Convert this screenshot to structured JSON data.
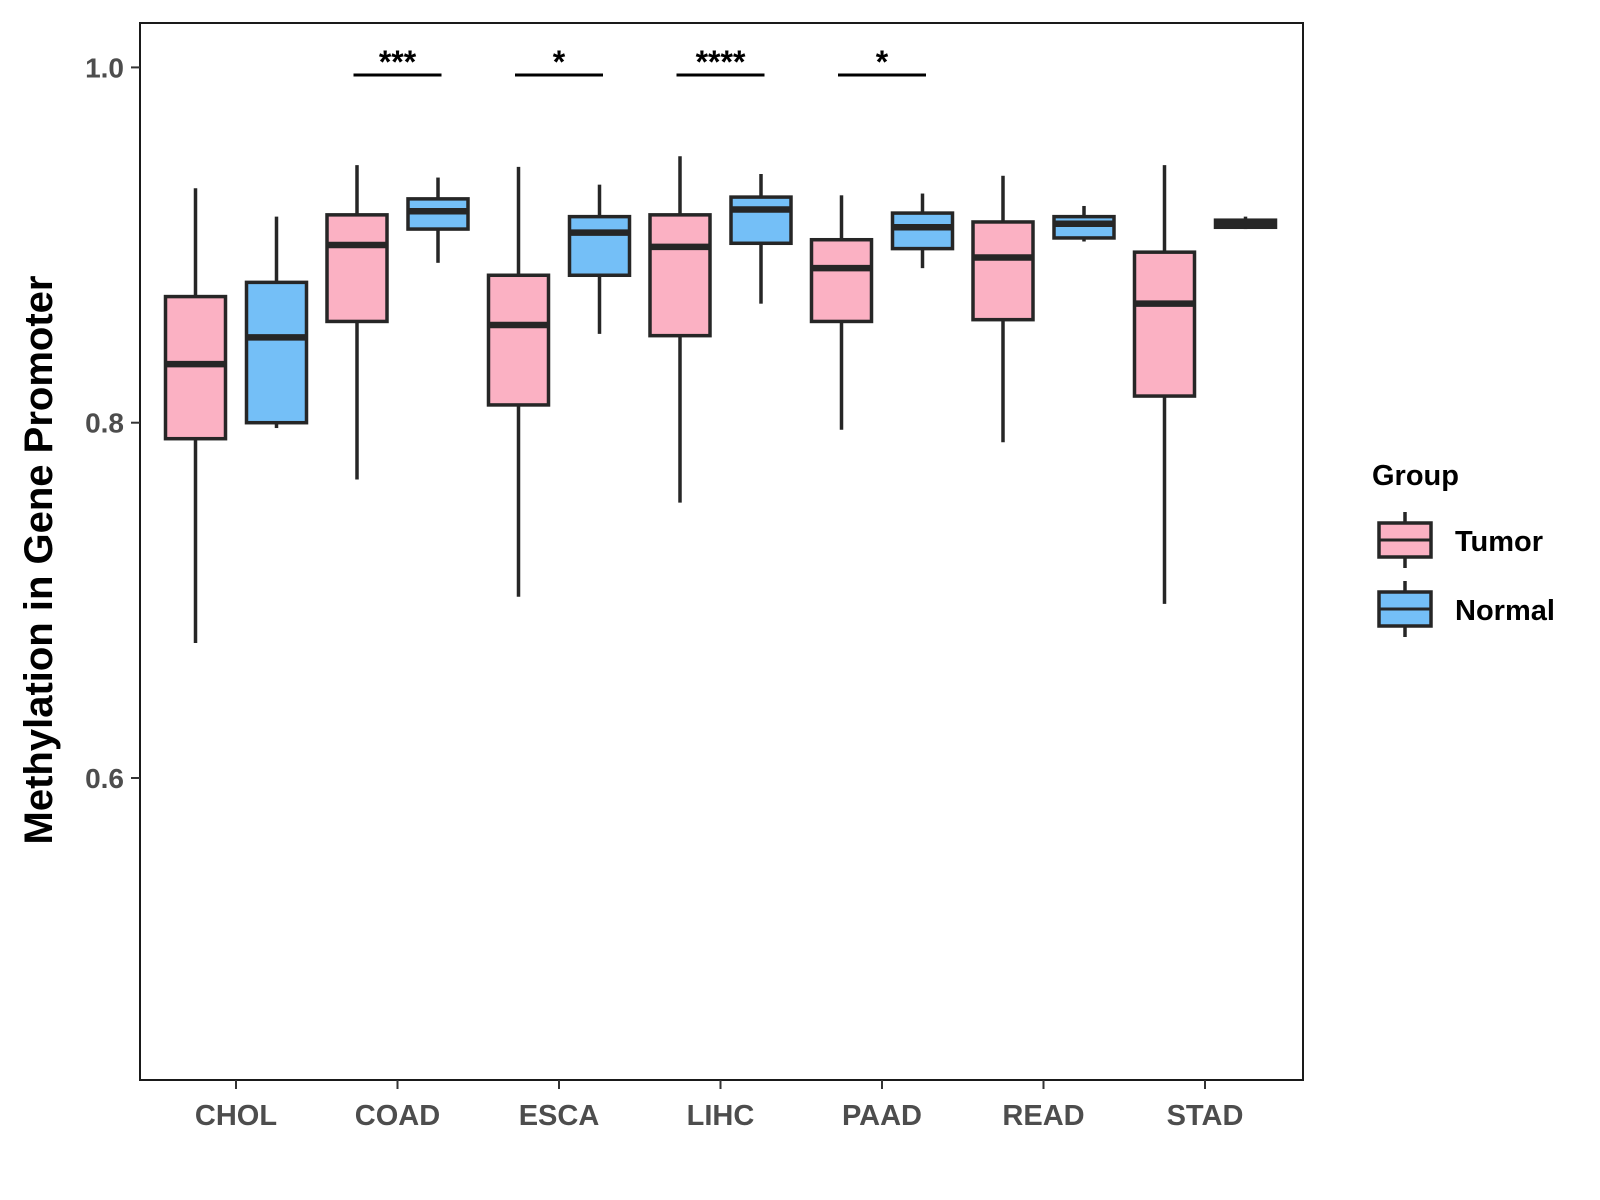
{
  "chart_data": {
    "type": "boxplot",
    "title": "",
    "xlabel": "",
    "ylabel": "Methylation in Gene Promoter",
    "ylim": [
      0.43,
      1.025
    ],
    "yticks": [
      0.6,
      0.8,
      1.0
    ],
    "ytick_labels": [
      "0.6",
      "0.8",
      "1.0"
    ],
    "grid": false,
    "legend_position": "right",
    "categories": [
      "CHOL",
      "COAD",
      "ESCA",
      "LIHC",
      "PAAD",
      "READ",
      "STAD"
    ],
    "legend": {
      "title": "Group",
      "items": [
        {
          "label": "Tumor",
          "color": "#FBB1C3"
        },
        {
          "label": "Normal",
          "color": "#74BFF7"
        }
      ]
    },
    "series": [
      {
        "name": "Tumor",
        "color": "#FBB1C3",
        "boxes": [
          {
            "category": "CHOL",
            "min": 0.676,
            "q1": 0.791,
            "median": 0.833,
            "q3": 0.871,
            "max": 0.932
          },
          {
            "category": "COAD",
            "min": 0.768,
            "q1": 0.857,
            "median": 0.9,
            "q3": 0.917,
            "max": 0.945
          },
          {
            "category": "ESCA",
            "min": 0.702,
            "q1": 0.81,
            "median": 0.855,
            "q3": 0.883,
            "max": 0.944
          },
          {
            "category": "LIHC",
            "min": 0.755,
            "q1": 0.849,
            "median": 0.899,
            "q3": 0.917,
            "max": 0.95
          },
          {
            "category": "PAAD",
            "min": 0.796,
            "q1": 0.857,
            "median": 0.887,
            "q3": 0.903,
            "max": 0.928
          },
          {
            "category": "READ",
            "min": 0.789,
            "q1": 0.858,
            "median": 0.893,
            "q3": 0.913,
            "max": 0.939
          },
          {
            "category": "STAD",
            "min": 0.698,
            "q1": 0.815,
            "median": 0.867,
            "q3": 0.896,
            "max": 0.945
          }
        ]
      },
      {
        "name": "Normal",
        "color": "#74BFF7",
        "boxes": [
          {
            "category": "CHOL",
            "min": 0.797,
            "q1": 0.8,
            "median": 0.848,
            "q3": 0.879,
            "max": 0.916
          },
          {
            "category": "COAD",
            "min": 0.89,
            "q1": 0.909,
            "median": 0.919,
            "q3": 0.926,
            "max": 0.938
          },
          {
            "category": "ESCA",
            "min": 0.85,
            "q1": 0.883,
            "median": 0.907,
            "q3": 0.916,
            "max": 0.934
          },
          {
            "category": "LIHC",
            "min": 0.867,
            "q1": 0.901,
            "median": 0.92,
            "q3": 0.927,
            "max": 0.94
          },
          {
            "category": "PAAD",
            "min": 0.887,
            "q1": 0.898,
            "median": 0.91,
            "q3": 0.918,
            "max": 0.929
          },
          {
            "category": "READ",
            "min": 0.902,
            "q1": 0.904,
            "median": 0.912,
            "q3": 0.916,
            "max": 0.922
          },
          {
            "category": "STAD",
            "min": 0.909,
            "q1": 0.91,
            "median": 0.912,
            "q3": 0.914,
            "max": 0.916
          }
        ]
      }
    ],
    "significance": [
      {
        "category": "COAD",
        "label": "***"
      },
      {
        "category": "ESCA",
        "label": "*"
      },
      {
        "category": "LIHC",
        "label": "****"
      },
      {
        "category": "PAAD",
        "label": "*"
      }
    ]
  }
}
